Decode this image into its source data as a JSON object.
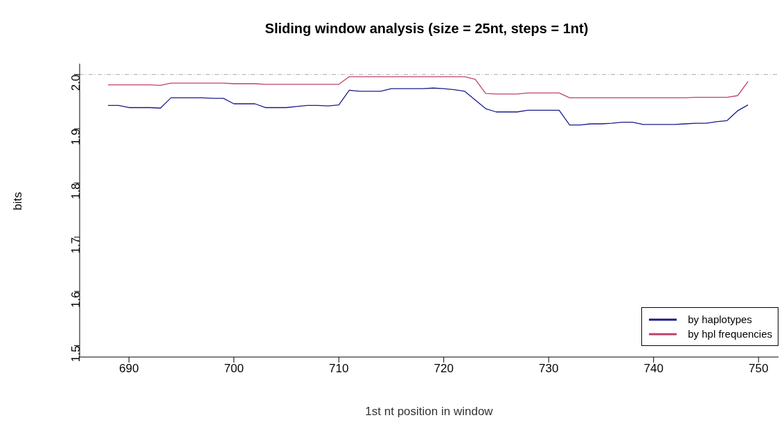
{
  "chart_data": {
    "type": "line",
    "title": "Sliding window analysis (size = 25nt, steps = 1nt)",
    "xlabel": "1st nt position in window",
    "ylabel": "bits",
    "x": [
      688,
      689,
      690,
      691,
      692,
      693,
      694,
      695,
      696,
      697,
      698,
      699,
      700,
      701,
      702,
      703,
      704,
      705,
      706,
      707,
      708,
      709,
      710,
      711,
      712,
      713,
      714,
      715,
      716,
      717,
      718,
      719,
      720,
      721,
      722,
      723,
      724,
      725,
      726,
      727,
      728,
      729,
      730,
      731,
      732,
      733,
      734,
      735,
      736,
      737,
      738,
      739,
      740,
      741,
      742,
      743,
      744,
      745,
      746,
      747,
      748,
      749
    ],
    "series": [
      {
        "name": "by haplotypes",
        "color": "#1a1a8c",
        "values": [
          1.943,
          1.943,
          1.939,
          1.939,
          1.939,
          1.938,
          1.957,
          1.957,
          1.957,
          1.957,
          1.956,
          1.956,
          1.946,
          1.946,
          1.946,
          1.939,
          1.939,
          1.939,
          1.941,
          1.943,
          1.943,
          1.942,
          1.944,
          1.971,
          1.969,
          1.969,
          1.969,
          1.974,
          1.974,
          1.974,
          1.974,
          1.975,
          1.974,
          1.972,
          1.969,
          1.953,
          1.937,
          1.931,
          1.931,
          1.931,
          1.934,
          1.934,
          1.934,
          1.934,
          1.907,
          1.907,
          1.909,
          1.909,
          1.91,
          1.912,
          1.912,
          1.908,
          1.908,
          1.908,
          1.908,
          1.909,
          1.91,
          1.91,
          1.913,
          1.915,
          1.933,
          1.944
        ]
      },
      {
        "name": "by hpl frequencies",
        "color": "#c0406a",
        "values": [
          1.981,
          1.981,
          1.981,
          1.981,
          1.981,
          1.98,
          1.984,
          1.984,
          1.984,
          1.984,
          1.984,
          1.984,
          1.983,
          1.983,
          1.983,
          1.982,
          1.982,
          1.982,
          1.982,
          1.982,
          1.982,
          1.982,
          1.982,
          1.996,
          1.996,
          1.996,
          1.996,
          1.996,
          1.996,
          1.996,
          1.996,
          1.996,
          1.996,
          1.996,
          1.996,
          1.991,
          1.965,
          1.964,
          1.964,
          1.964,
          1.966,
          1.966,
          1.966,
          1.966,
          1.957,
          1.957,
          1.957,
          1.957,
          1.957,
          1.957,
          1.957,
          1.957,
          1.957,
          1.957,
          1.957,
          1.957,
          1.958,
          1.958,
          1.958,
          1.958,
          1.961,
          1.987
        ]
      }
    ],
    "xlim": [
      685.3,
      751.9
    ],
    "xticks": [
      690,
      700,
      710,
      720,
      730,
      740,
      750
    ],
    "ylim": [
      1.479,
      2.02
    ],
    "yticks": [
      1.5,
      1.6,
      1.7,
      1.8,
      1.9,
      {
        "value": 2.0,
        "label": "2.0"
      }
    ],
    "ref_lines": [
      {
        "axis": "y",
        "value": 2.0,
        "color": "#aaaaaa",
        "line_style": "dashdot"
      }
    ],
    "legend": "bottom right",
    "grid": false,
    "marker": "none",
    "line_style": "solid"
  }
}
